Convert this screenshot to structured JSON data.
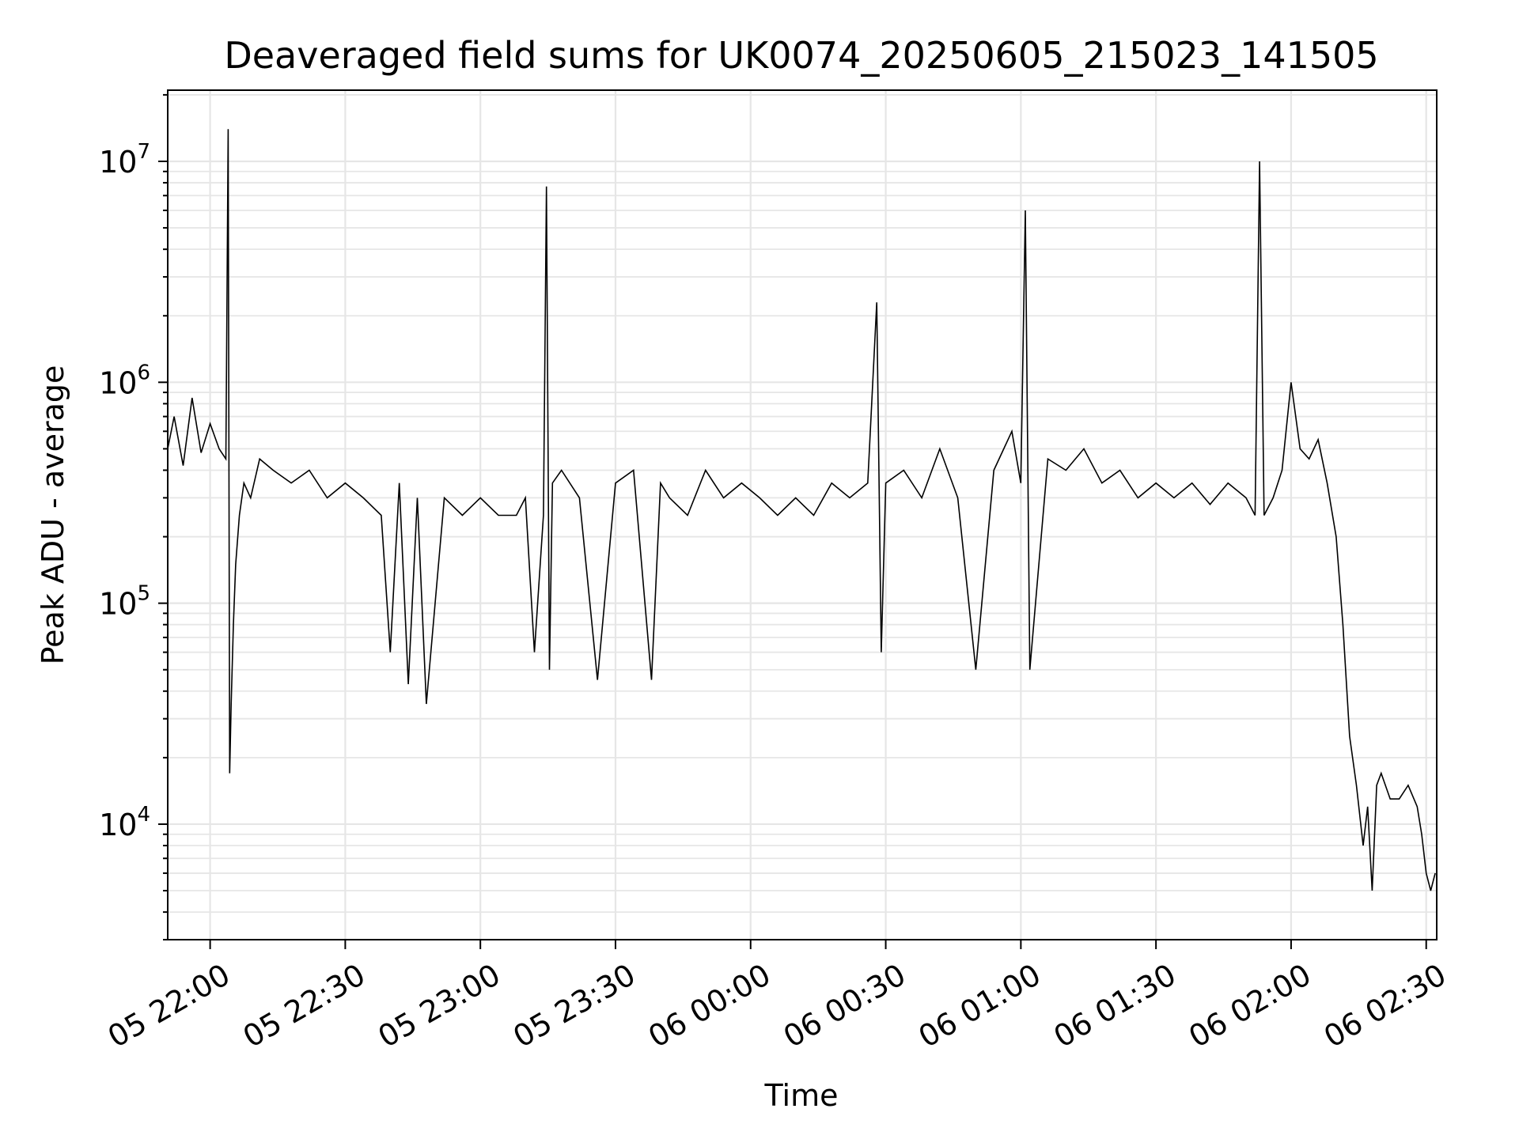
{
  "chart_data": {
    "type": "line",
    "title": "Deaveraged field sums for UK0074_20250605_215023_141505",
    "xlabel": "Time",
    "ylabel": "Peak ADU - average",
    "x_unit": "time of day, date shown as day-of-month",
    "xlim": [
      "05 21:50:35",
      "06 02:32:20"
    ],
    "ylim": [
      3000,
      21000000
    ],
    "y_scale": "log",
    "grid": true,
    "legend": "none",
    "line_color": "#000000",
    "grid_color": "#e6e6e6",
    "x_ticks": [
      "05 22:00",
      "05 22:30",
      "05 23:00",
      "05 23:30",
      "06 00:00",
      "06 00:30",
      "06 01:00",
      "06 01:30",
      "06 02:00",
      "06 02:30"
    ],
    "y_ticks": [
      {
        "value": 10000,
        "base": "10",
        "exp": "4"
      },
      {
        "value": 100000,
        "base": "10",
        "exp": "5"
      },
      {
        "value": 1000000,
        "base": "10",
        "exp": "6"
      },
      {
        "value": 10000000,
        "base": "10",
        "exp": "7"
      }
    ],
    "series": [
      {
        "x": [
          "05 21:50:35",
          "05 21:52:00",
          "05 21:54:00",
          "05 21:56:00",
          "05 21:58:00",
          "05 22:00:00",
          "05 22:02:00",
          "05 22:03:30",
          "05 22:04:00",
          "05 22:04:20",
          "05 22:04:40",
          "05 22:05:10",
          "05 22:05:40",
          "05 22:06:30",
          "05 22:07:30",
          "05 22:09:00",
          "05 22:11:00",
          "05 22:14:00",
          "05 22:18:00",
          "05 22:22:00",
          "05 22:26:00",
          "05 22:30:00",
          "05 22:34:00",
          "05 22:38:00",
          "05 22:40:00",
          "05 22:42:00",
          "05 22:44:00",
          "05 22:46:00",
          "05 22:48:00",
          "05 22:52:00",
          "05 22:56:00",
          "05 23:00:00",
          "05 23:04:00",
          "05 23:08:00",
          "05 23:10:00",
          "05 23:12:00",
          "05 23:14:00",
          "05 23:14:40",
          "05 23:15:20",
          "05 23:16:00",
          "05 23:18:00",
          "05 23:22:00",
          "05 23:26:00",
          "05 23:30:00",
          "05 23:34:00",
          "05 23:38:00",
          "05 23:40:00",
          "05 23:42:00",
          "05 23:46:00",
          "05 23:50:00",
          "05 23:54:00",
          "05 23:58:00",
          "06 00:02:00",
          "06 00:06:00",
          "06 00:10:00",
          "06 00:14:00",
          "06 00:18:00",
          "06 00:22:00",
          "06 00:26:00",
          "06 00:28:00",
          "06 00:29:00",
          "06 00:30:00",
          "06 00:34:00",
          "06 00:38:00",
          "06 00:42:00",
          "06 00:46:00",
          "06 00:50:00",
          "06 00:54:00",
          "06 00:58:00",
          "06 01:00:00",
          "06 01:01:00",
          "06 01:02:00",
          "06 01:06:00",
          "06 01:10:00",
          "06 01:14:00",
          "06 01:18:00",
          "06 01:22:00",
          "06 01:26:00",
          "06 01:30:00",
          "06 01:34:00",
          "06 01:38:00",
          "06 01:42:00",
          "06 01:46:00",
          "06 01:50:00",
          "06 01:52:00",
          "06 01:53:00",
          "06 01:54:00",
          "06 01:56:00",
          "06 01:58:00",
          "06 02:00:00",
          "06 02:02:00",
          "06 02:04:00",
          "06 02:06:00",
          "06 02:08:00",
          "06 02:10:00",
          "06 02:11:30",
          "06 02:13:00",
          "06 02:14:30",
          "06 02:16:00",
          "06 02:17:00",
          "06 02:18:00",
          "06 02:19:00",
          "06 02:20:00",
          "06 02:22:00",
          "06 02:24:00",
          "06 02:26:00",
          "06 02:28:00",
          "06 02:29:00",
          "06 02:30:00",
          "06 02:31:00",
          "06 02:32:00"
        ],
        "y": [
          500000,
          700000,
          420000,
          850000,
          480000,
          650000,
          500000,
          450000,
          14000000,
          17000,
          35000,
          80000,
          150000,
          250000,
          350000,
          300000,
          450000,
          400000,
          350000,
          400000,
          300000,
          350000,
          300000,
          250000,
          60000,
          350000,
          43000,
          300000,
          35000,
          300000,
          250000,
          300000,
          250000,
          250000,
          300000,
          60000,
          250000,
          7700000,
          50000,
          350000,
          400000,
          300000,
          45000,
          350000,
          400000,
          45000,
          350000,
          300000,
          250000,
          400000,
          300000,
          350000,
          300000,
          250000,
          300000,
          250000,
          350000,
          300000,
          350000,
          2300000,
          60000,
          350000,
          400000,
          300000,
          500000,
          300000,
          50000,
          400000,
          600000,
          350000,
          6000000,
          50000,
          450000,
          400000,
          500000,
          350000,
          400000,
          300000,
          350000,
          300000,
          350000,
          280000,
          350000,
          300000,
          250000,
          10000000,
          250000,
          300000,
          400000,
          1000000,
          500000,
          450000,
          550000,
          350000,
          200000,
          80000,
          25000,
          15000,
          8000,
          12000,
          5000,
          15000,
          17000,
          13000,
          13000,
          15000,
          12000,
          9000,
          6000,
          5000,
          6000
        ]
      }
    ]
  }
}
